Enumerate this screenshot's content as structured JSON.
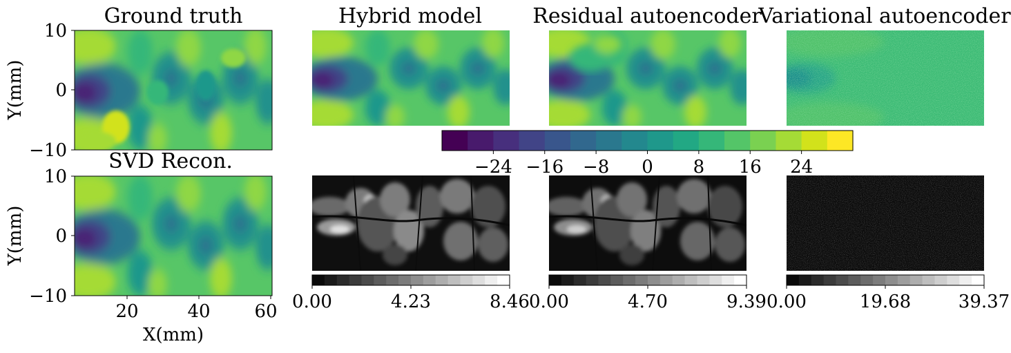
{
  "figure": {
    "panel_titles": {
      "ground_truth": "Ground truth",
      "hybrid": "Hybrid model",
      "residual": "Residual autoencoder",
      "variational": "Variational autoencoder",
      "svd": "SVD Recon."
    },
    "xlabel": "X(mm)",
    "ylabel": "Y(mm)"
  },
  "chart_data": [
    {
      "type": "heatmap",
      "field": "ground_truth",
      "title": "Ground truth",
      "ylabel": "Y(mm)",
      "xlim": [
        5,
        60
      ],
      "ylim": [
        -10,
        10
      ],
      "y_ticks": [
        "10",
        "0",
        "−10"
      ],
      "colormap": "viridis"
    },
    {
      "type": "heatmap",
      "field": "svd",
      "title": "SVD Recon.",
      "xlabel": "X(mm)",
      "ylabel": "Y(mm)",
      "xlim": [
        5,
        60
      ],
      "ylim": [
        -10,
        10
      ],
      "x_ticks": [
        "20",
        "40",
        "60"
      ],
      "y_ticks": [
        "10",
        "0",
        "−10"
      ],
      "colormap": "viridis"
    },
    {
      "type": "heatmap",
      "field": "hybrid",
      "title": "Hybrid model",
      "colormap": "viridis"
    },
    {
      "type": "heatmap",
      "field": "residual",
      "title": "Residual autoencoder",
      "colormap": "viridis"
    },
    {
      "type": "heatmap",
      "field": "variational",
      "title": "Variational autoencoder",
      "colormap": "viridis"
    },
    {
      "type": "colorbar",
      "name": "shared-field-colorbar",
      "range": [
        -32,
        32
      ],
      "levels": 16,
      "tick_labels": [
        "−24",
        "−16",
        "−8",
        "0",
        "8",
        "16",
        "24"
      ],
      "tick_values": [
        -24,
        -16,
        -8,
        0,
        8,
        16,
        24
      ],
      "colors": [
        "#440154",
        "#481a6c",
        "#472f7d",
        "#414487",
        "#39568c",
        "#31688e",
        "#2a788e",
        "#23888e",
        "#1f988b",
        "#22a884",
        "#35b779",
        "#54c568",
        "#7ad151",
        "#a5db36",
        "#d2e21b",
        "#fde725"
      ]
    },
    {
      "type": "heatmap",
      "field": "hybrid_error",
      "colormap": "gray",
      "range": [
        0,
        8.46
      ]
    },
    {
      "type": "heatmap",
      "field": "residual_error",
      "colormap": "gray",
      "range": [
        0,
        9.39
      ]
    },
    {
      "type": "heatmap",
      "field": "variational_error",
      "colormap": "gray",
      "range": [
        0,
        39.37
      ]
    },
    {
      "type": "colorbar",
      "name": "hybrid-error-colorbar",
      "range": [
        0,
        8.46
      ],
      "tick_labels": [
        "0.00",
        "4.23",
        "8.46"
      ]
    },
    {
      "type": "colorbar",
      "name": "residual-error-colorbar",
      "range": [
        0,
        9.39
      ],
      "tick_labels": [
        "0.00",
        "4.70",
        "9.39"
      ]
    },
    {
      "type": "colorbar",
      "name": "variational-error-colorbar",
      "range": [
        0,
        39.37
      ],
      "tick_labels": [
        "0.00",
        "19.68",
        "39.37"
      ]
    }
  ]
}
